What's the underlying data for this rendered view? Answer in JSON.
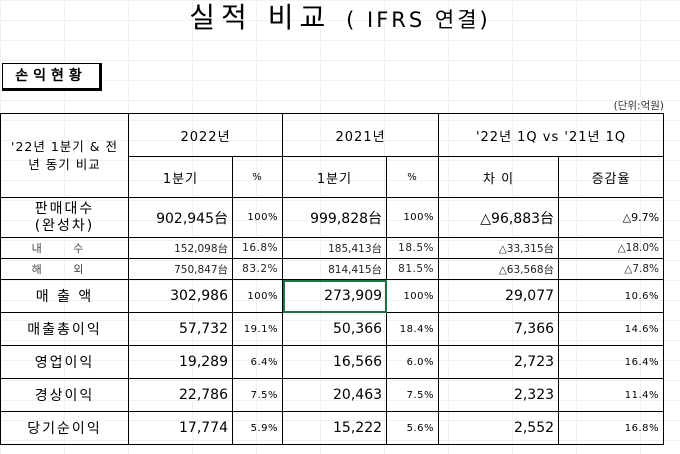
{
  "title": {
    "main": "실적 비교",
    "sub": "( IFRS 연결)"
  },
  "section_label": "손익현황",
  "unit": "(단위:억원)",
  "header": {
    "corner": "'22년 1분기 & 전년 동기 비교",
    "year_2022": "2022년",
    "year_2021": "2021년",
    "compare": "'22년 1Q vs '21년 1Q",
    "q1": "1분기",
    "pct": "%",
    "diff": "차 이",
    "growth": "증감율"
  },
  "rows": [
    {
      "label": "판매대수\n(완성차)",
      "v2022": "902,945台",
      "p2022": "100%",
      "v2021": "999,828台",
      "p2021": "100%",
      "diff": "△96,883台",
      "growth": "△9.7%"
    },
    {
      "label": "내 수",
      "v2022": "152,098台",
      "p2022": "16.8%",
      "v2021": "185,413台",
      "p2021": "18.5%",
      "diff": "△33,315台",
      "growth": "△18.0%"
    },
    {
      "label": "해 외",
      "v2022": "750,847台",
      "p2022": "83.2%",
      "v2021": "814,415台",
      "p2021": "81.5%",
      "diff": "△63,568台",
      "growth": "△7.8%"
    },
    {
      "label": "매 출 액",
      "v2022": "302,986",
      "p2022": "100%",
      "v2021": "273,909",
      "p2021": "100%",
      "diff": "29,077",
      "growth": "10.6%"
    },
    {
      "label": "매출총이익",
      "v2022": "57,732",
      "p2022": "19.1%",
      "v2021": "50,366",
      "p2021": "18.4%",
      "diff": "7,366",
      "growth": "14.6%"
    },
    {
      "label": "영업이익",
      "v2022": "19,289",
      "p2022": "6.4%",
      "v2021": "16,566",
      "p2021": "6.0%",
      "diff": "2,723",
      "growth": "16.4%"
    },
    {
      "label": "경상이익",
      "v2022": "22,786",
      "p2022": "7.5%",
      "v2021": "20,463",
      "p2021": "7.5%",
      "diff": "2,323",
      "growth": "11.4%"
    },
    {
      "label": "당기순이익",
      "v2022": "17,774",
      "p2022": "5.9%",
      "v2021": "15,222",
      "p2021": "5.6%",
      "diff": "2,552",
      "growth": "16.8%"
    }
  ]
}
